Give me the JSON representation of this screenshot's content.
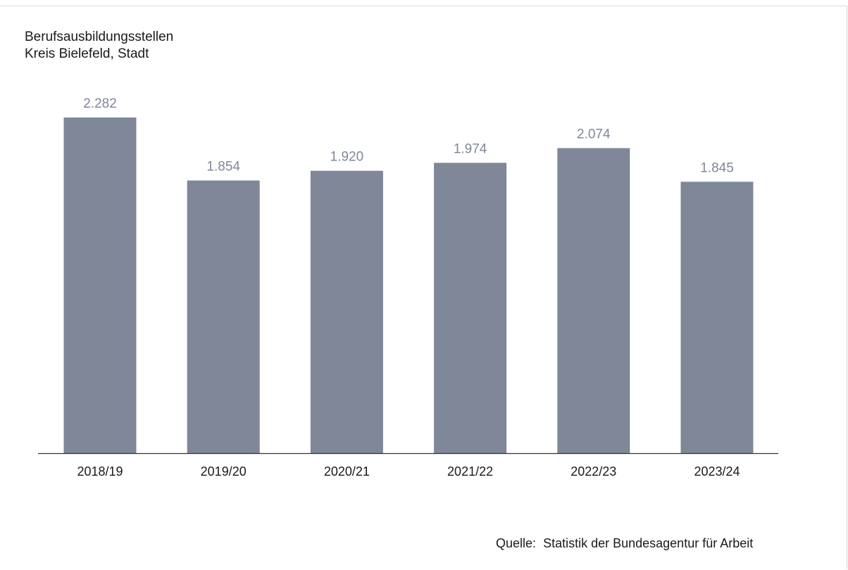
{
  "chart_data": {
    "type": "bar",
    "title": "Berufsausbildungsstellen",
    "subtitle": "Kreis Bielefeld, Stadt",
    "categories": [
      "2018/19",
      "2019/20",
      "2020/21",
      "2021/22",
      "2022/23",
      "2023/24"
    ],
    "values": [
      2282,
      1854,
      1920,
      1974,
      2074,
      1845
    ],
    "value_labels": [
      "2.282",
      "1.854",
      "1.920",
      "1.974",
      "2.074",
      "1.845"
    ],
    "xlabel": "",
    "ylabel": "",
    "ylim": [
      0,
      2282
    ],
    "grid": false,
    "bar_color": "#7f8798"
  },
  "source": {
    "label": "Quelle:",
    "text": "Statistik der Bundesagentur für Arbeit"
  },
  "colors": {
    "bar": "#7f8798",
    "value_label": "#7f8798",
    "axis": "#333333",
    "text": "#1a1a1a"
  }
}
